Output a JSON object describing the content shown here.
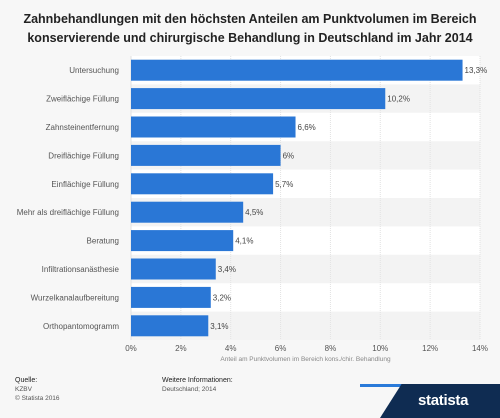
{
  "chart_data": {
    "type": "bar",
    "orientation": "horizontal",
    "title": "Zahnbehandlungen mit den höchsten Anteilen am Punktvolumen im Bereich konservierende und chirurgische Behandlung in Deutschland im Jahr 2014",
    "categories": [
      "Untersuchung",
      "Zweiflächige Füllung",
      "Zahnsteinentfernung",
      "Dreiflächige Füllung",
      "Einflächige Füllung",
      "Mehr als dreiflächige Füllung",
      "Beratung",
      "Infiltrationsanästhesie",
      "Wurzelkanalaufbereitung",
      "Orthopantomogramm"
    ],
    "values": [
      13.3,
      10.2,
      6.6,
      6.0,
      5.7,
      4.5,
      4.1,
      3.4,
      3.2,
      3.1
    ],
    "value_labels": [
      "13,3%",
      "10,2%",
      "6,6%",
      "6%",
      "5,7%",
      "4,5%",
      "4,1%",
      "3,4%",
      "3,2%",
      "3,1%"
    ],
    "x_ticks": [
      0,
      2,
      4,
      6,
      8,
      10,
      12,
      14
    ],
    "x_tick_labels": [
      "0%",
      "2%",
      "4%",
      "6%",
      "8%",
      "10%",
      "12%",
      "14%"
    ],
    "xlim": [
      0,
      14
    ],
    "xlabel": "Anteil am Punktvolumen im Bereich kons./chir. Behandlung",
    "ylabel": "",
    "grid": true,
    "bar_color": "#2a77d6"
  },
  "footer": {
    "source_heading": "Quelle:",
    "source_lines": [
      "KZBV",
      "© Statista 2016"
    ],
    "info_heading": "Weitere Informationen:",
    "info_lines": [
      "Deutschland; 2014"
    ]
  },
  "brand": {
    "name": "statista",
    "colors": {
      "dark": "#0f2c52",
      "accent": "#2a7ad9"
    }
  }
}
